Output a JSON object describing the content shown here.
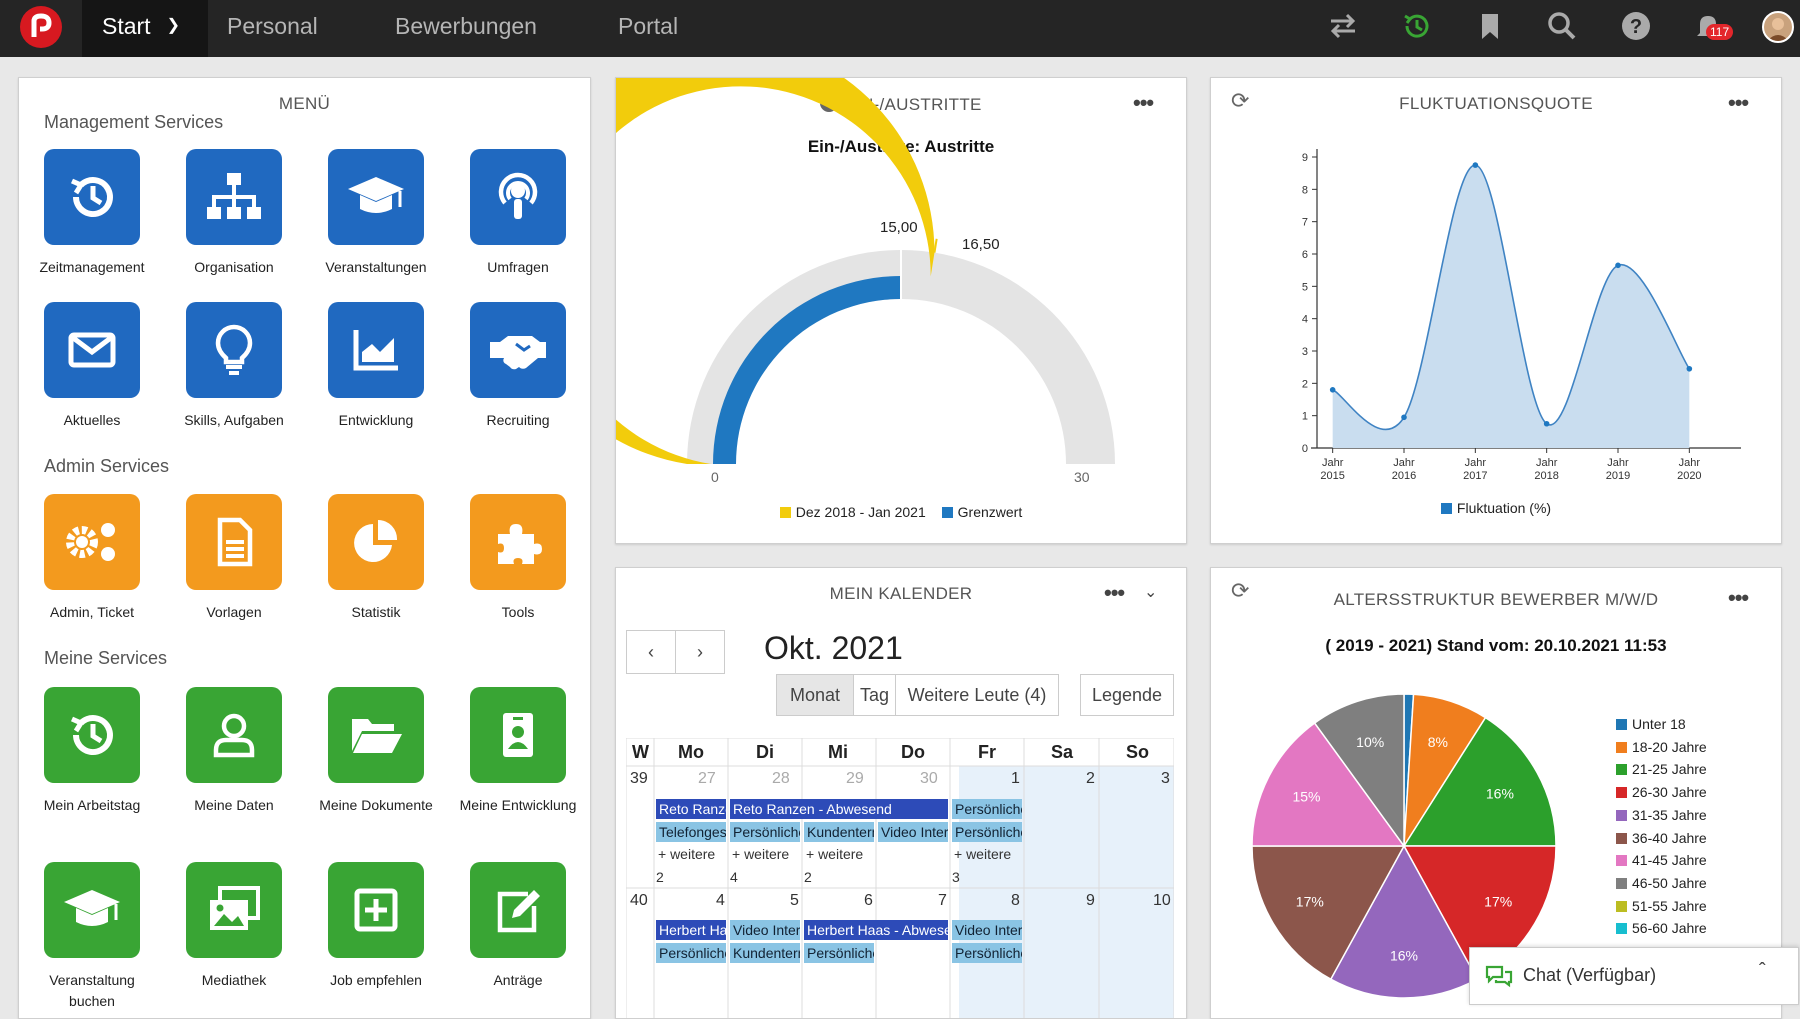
{
  "nav": {
    "start": "Start",
    "personal": "Personal",
    "bewerbungen": "Bewerbungen",
    "portal": "Portal",
    "notification_count": "117"
  },
  "menu": {
    "title": "MENÜ",
    "management_title": "Management Services",
    "management": [
      "Zeitmanagement",
      "Organisation",
      "Veranstaltungen",
      "Umfragen",
      "Aktuelles",
      "Skills, Aufgaben",
      "Entwicklung",
      "Recruiting"
    ],
    "admin_title": "Admin Services",
    "admin": [
      "Admin, Ticket",
      "Vorlagen",
      "Statistik",
      "Tools"
    ],
    "meine_title": "Meine Services",
    "meine": [
      "Mein Arbeitstag",
      "Meine Daten",
      "Meine Dokumente",
      "Meine Entwicklung",
      "Veranstaltung buchen",
      "Mediathek",
      "Job empfehlen",
      "Anträge"
    ]
  },
  "gauge": {
    "title": "EIN-/AUSTRITTE",
    "subtitle": "Ein-/Austritte: Austritte",
    "min_label": "0",
    "max_label": "30",
    "marker_label": "15,00",
    "value_label": "16,50",
    "legend": [
      "Dez 2018 - Jan 2021",
      "Grenzwert"
    ],
    "colors": {
      "value": "#f2cc0c",
      "threshold": "#1f78c1",
      "track": "#e3e3e3"
    }
  },
  "fluktuation": {
    "title": "FLUKTUATIONSQUOTE",
    "chart_data": {
      "type": "area",
      "x": [
        "Jahr 2015",
        "Jahr 2016",
        "Jahr 2017",
        "Jahr 2018",
        "Jahr 2019",
        "Jahr 2020"
      ],
      "series": [
        {
          "name": "Fluktuation (%)",
          "values": [
            1.8,
            0.95,
            8.75,
            0.75,
            5.65,
            2.45
          ]
        }
      ],
      "ylim": [
        0,
        9
      ],
      "yticks": [
        "0",
        "1",
        "2",
        "3",
        "4",
        "5",
        "6",
        "7",
        "8",
        "9"
      ],
      "legend": "bottom"
    }
  },
  "calendar": {
    "title": "MEIN KALENDER",
    "month": "Okt. 2021",
    "views": [
      "Monat",
      "Tag",
      "Weitere Leute (4)"
    ],
    "legend_btn": "Legende",
    "headers": [
      "W",
      "Mo",
      "Di",
      "Mi",
      "Do",
      "Fr",
      "Sa",
      "So"
    ],
    "week1": {
      "num": "39",
      "days": [
        "27",
        "28",
        "29",
        "30",
        "1",
        "2",
        "3"
      ]
    },
    "week2": {
      "num": "40",
      "days": [
        "4",
        "5",
        "6",
        "7",
        "8",
        "9",
        "10"
      ]
    },
    "events": {
      "e1": "Reto Ranzen - Abwesend",
      "e2": "Reto Ranzen - Abwesend",
      "e3": "Persönliche Termine",
      "e4": "Telefongespräch",
      "e5": "Persönliche Termine",
      "e6": "Kundentermin",
      "e7": "Video Interview",
      "e8": "Persönliche Termine",
      "more": "+ weitere",
      "c1": "2",
      "c2": "4",
      "c3": "2",
      "c4": "3",
      "w2a": "Herbert Haas",
      "w2b": "Video Interview",
      "w2c": "Herbert Haas - Abwesend",
      "w2d": "Video Interview",
      "w2e": "Persönliche Termine",
      "w2f": "Kundentermin",
      "w2g": "Persönliche Termine",
      "w2h": "Persönliche Termine"
    }
  },
  "alter": {
    "title": "ALTERSSTRUKTUR BEWERBER M/W/D",
    "subtitle": "( 2019 - 2021) Stand vom: 20.10.2021 11:53",
    "chart_data": {
      "type": "pie",
      "labels": [
        "Unter 18",
        "18-20 Jahre",
        "21-25 Jahre",
        "26-30 Jahre",
        "31-35 Jahre",
        "36-40 Jahre",
        "41-45 Jahre",
        "46-50 Jahre",
        "51-55 Jahre",
        "56-60 Jahre"
      ],
      "values": [
        1,
        8,
        16,
        17,
        16,
        17,
        15,
        10,
        0,
        0
      ],
      "colors": [
        "#1f77b4",
        "#f07e1e",
        "#2ca02c",
        "#d62728",
        "#9467bd",
        "#8c564b",
        "#e377c2",
        "#7f7f7f",
        "#bcbd22",
        "#17becf"
      ],
      "legend": "right"
    }
  },
  "chat": {
    "label": "Chat (Verfügbar)"
  }
}
